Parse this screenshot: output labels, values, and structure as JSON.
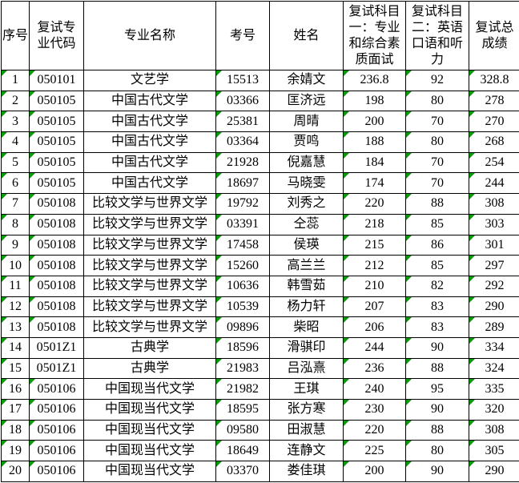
{
  "chart_data": {
    "type": "table",
    "title": "",
    "columns": [
      "序号",
      "复试专业代码",
      "专业名称",
      "考号",
      "姓名",
      "复试科目一：专业和综合素质面试",
      "复试科目二：英语口语和听力",
      "复试总成绩"
    ],
    "rows": [
      [
        "1",
        "050101",
        "文艺学",
        "15513",
        "余婧文",
        "236.8",
        "92",
        "328.8"
      ],
      [
        "2",
        "050105",
        "中国古代文学",
        "03366",
        "匡济远",
        "198",
        "80",
        "278"
      ],
      [
        "3",
        "050105",
        "中国古代文学",
        "25381",
        "周晴",
        "200",
        "70",
        "270"
      ],
      [
        "4",
        "050105",
        "中国古代文学",
        "03364",
        "贾鸣",
        "188",
        "80",
        "268"
      ],
      [
        "5",
        "050105",
        "中国古代文学",
        "21928",
        "倪嘉慧",
        "184",
        "70",
        "254"
      ],
      [
        "6",
        "050105",
        "中国古代文学",
        "18697",
        "马晓雯",
        "174",
        "70",
        "244"
      ],
      [
        "7",
        "050108",
        "比较文学与世界文学",
        "19792",
        "刘秀之",
        "220",
        "88",
        "308"
      ],
      [
        "8",
        "050108",
        "比较文学与世界文学",
        "03391",
        "仝蕊",
        "218",
        "85",
        "303"
      ],
      [
        "9",
        "050108",
        "比较文学与世界文学",
        "17458",
        "侯瑛",
        "215",
        "86",
        "301"
      ],
      [
        "10",
        "050108",
        "比较文学与世界文学",
        "15260",
        "高兰兰",
        "212",
        "85",
        "297"
      ],
      [
        "11",
        "050108",
        "比较文学与世界文学",
        "10636",
        "韩雪茹",
        "210",
        "82",
        "292"
      ],
      [
        "12",
        "050108",
        "比较文学与世界文学",
        "10539",
        "杨力轩",
        "207",
        "83",
        "290"
      ],
      [
        "13",
        "050108",
        "比较文学与世界文学",
        "09896",
        "柴昭",
        "206",
        "83",
        "289"
      ],
      [
        "14",
        "0501Z1",
        "古典学",
        "18596",
        "滑骐印",
        "244",
        "90",
        "334"
      ],
      [
        "15",
        "0501Z1",
        "古典学",
        "21983",
        "吕泓熹",
        "236",
        "88",
        "324"
      ],
      [
        "16",
        "050106",
        "中国现当代文学",
        "21982",
        "王琪",
        "240",
        "95",
        "335"
      ],
      [
        "17",
        "050106",
        "中国现当代文学",
        "18595",
        "张方寒",
        "230",
        "90",
        "320"
      ],
      [
        "18",
        "050106",
        "中国现当代文学",
        "09580",
        "田淑慧",
        "220",
        "88",
        "308"
      ],
      [
        "19",
        "050106",
        "中国现当代文学",
        "18649",
        "连静文",
        "225",
        "80",
        "305"
      ],
      [
        "20",
        "050106",
        "中国现当代文学",
        "03370",
        "娄佳琪",
        "200",
        "90",
        "290"
      ]
    ],
    "layout_hints": {
      "grid": "all-borders",
      "header_rows": 1,
      "indicator": "green corner triangle shown on cells containing pure numeric text"
    }
  },
  "colors": {
    "border": "#000000",
    "background": "#ffffff",
    "number_as_text_indicator": "#00a000"
  },
  "icons": {
    "number_as_text_indicator": "green-corner-triangle"
  }
}
